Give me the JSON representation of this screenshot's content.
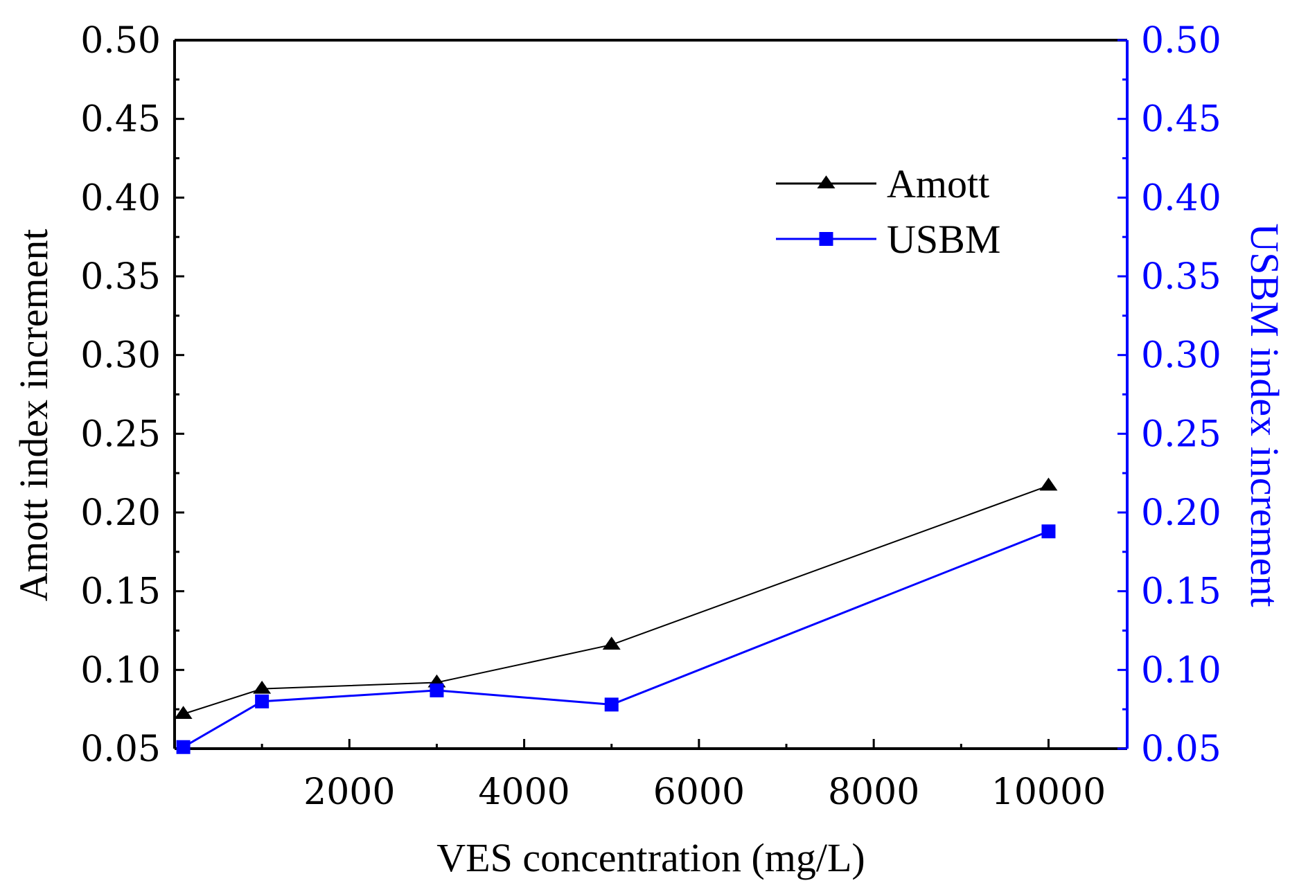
{
  "chart_data": {
    "type": "line",
    "x": [
      100,
      1000,
      3000,
      5000,
      10000
    ],
    "xlim": [
      0,
      10900
    ],
    "xticks": [
      2000,
      4000,
      6000,
      8000,
      10000
    ],
    "xtick_labels": [
      "2000",
      "4000",
      "6000",
      "8000",
      "10000"
    ],
    "xlabel": "VES concentration (mg/L)",
    "ylabel_left": "Amott index increment",
    "ylabel_right": "USBM index increment",
    "ylim_left": [
      0.05,
      0.5
    ],
    "ylim_right": [
      0.05,
      0.5
    ],
    "yticks": [
      0.05,
      0.1,
      0.15,
      0.2,
      0.25,
      0.3,
      0.35,
      0.4,
      0.45,
      0.5
    ],
    "ytick_labels": [
      "0.05",
      "0.10",
      "0.15",
      "0.20",
      "0.25",
      "0.30",
      "0.35",
      "0.40",
      "0.45",
      "0.50"
    ],
    "series": [
      {
        "name": "Amott",
        "axis": "left",
        "marker": "triangle",
        "color": "#000000",
        "values": [
          0.072,
          0.088,
          0.092,
          0.116,
          0.217
        ]
      },
      {
        "name": "USBM",
        "axis": "right",
        "marker": "square",
        "color": "#0000ff",
        "values": [
          0.051,
          0.08,
          0.087,
          0.078,
          0.188
        ]
      }
    ],
    "grid": false,
    "legend_position": "top-right"
  }
}
